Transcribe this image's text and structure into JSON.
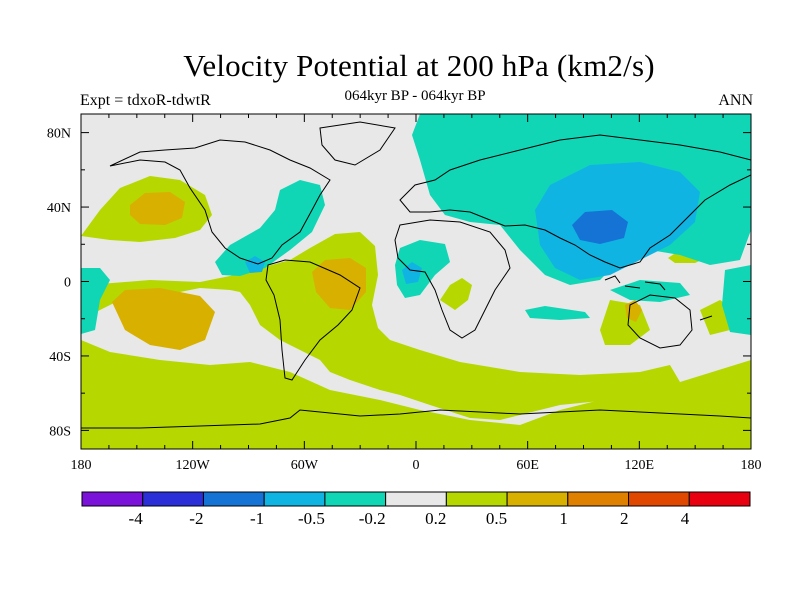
{
  "header": {
    "title": "Velocity Potential at 200 hPa (km2/s)",
    "subtitle": "064kyr BP - 064kyr BP",
    "left_label": "Expt = tdxoR-tdwtR",
    "right_label": "ANN"
  },
  "map": {
    "type": "filled-contour",
    "projection": "cylindrical-equidistant",
    "lon_range": [
      -180,
      180
    ],
    "lat_range": [
      -90,
      90
    ],
    "x_ticks": [
      {
        "lon": -180,
        "label": "180"
      },
      {
        "lon": -120,
        "label": "120W"
      },
      {
        "lon": -60,
        "label": "60W"
      },
      {
        "lon": 0,
        "label": "0"
      },
      {
        "lon": 60,
        "label": "60E"
      },
      {
        "lon": 120,
        "label": "120E"
      },
      {
        "lon": 180,
        "label": "180"
      }
    ],
    "y_ticks": [
      {
        "lat": 80,
        "label": "80N"
      },
      {
        "lat": 40,
        "label": "40N"
      },
      {
        "lat": 0,
        "label": "0"
      },
      {
        "lat": -40,
        "label": "40S"
      },
      {
        "lat": -80,
        "label": "80S"
      }
    ],
    "background_color": "#e8e8e8",
    "coastline_color": "#000000"
  },
  "colorbar": {
    "colors": [
      "#7b12d9",
      "#2b2fd8",
      "#1473d4",
      "#10b4e3",
      "#10d6b6",
      "#e8e8e8",
      "#b6d800",
      "#d8b000",
      "#e08000",
      "#e04800",
      "#e80010"
    ],
    "labels": [
      "-4",
      "-2",
      "-1",
      "-0.5",
      "-0.2",
      "0.2",
      "0.5",
      "1",
      "2",
      "4"
    ]
  },
  "chart_data": {
    "type": "heatmap",
    "title": "Velocity Potential at 200 hPa (km2/s)",
    "subtitle": "064kyr BP - 064kyr BP",
    "levels": [
      -4,
      -2,
      -1,
      -0.5,
      -0.2,
      0.2,
      0.5,
      1,
      2,
      4
    ],
    "regions": [
      {
        "name": "south-atlantic-pacific-positive",
        "level": 0.2,
        "lon": [
          -180,
          20
        ],
        "lat": [
          -75,
          -10
        ]
      },
      {
        "name": "antarctic-positive",
        "level": 0.2,
        "lon": [
          -180,
          180
        ],
        "lat": [
          -90,
          -60
        ]
      },
      {
        "name": "north-pacific-positive",
        "level": 0.2,
        "lon": [
          -180,
          -110
        ],
        "lat": [
          20,
          50
        ]
      },
      {
        "name": "north-pacific-core",
        "level": 0.5,
        "lon": [
          -152,
          -128
        ],
        "lat": [
          30,
          44
        ]
      },
      {
        "name": "south-pacific-core",
        "level": 0.5,
        "lon": [
          -165,
          -130
        ],
        "lat": [
          -32,
          -15
        ]
      },
      {
        "name": "south-america-core",
        "level": 0.5,
        "lon": [
          -50,
          -35
        ],
        "lat": [
          -10,
          5
        ]
      },
      {
        "name": "asia-negative",
        "level": -0.2,
        "lon": [
          10,
          180
        ],
        "lat": [
          0,
          90
        ]
      },
      {
        "name": "asia-core",
        "level": -0.5,
        "lon": [
          70,
          130
        ],
        "lat": [
          10,
          55
        ]
      },
      {
        "name": "asia-center",
        "level": -1,
        "lon": [
          90,
          115
        ],
        "lat": [
          20,
          35
        ]
      },
      {
        "name": "central-america-negative",
        "level": -0.2,
        "lon": [
          -100,
          -55
        ],
        "lat": [
          5,
          45
        ]
      },
      {
        "name": "west-africa-negative",
        "level": -0.2,
        "lon": [
          -5,
          20
        ],
        "lat": [
          -5,
          15
        ]
      },
      {
        "name": "east-pacific-negative",
        "level": -0.2,
        "lon": [
          -180,
          -170
        ],
        "lat": [
          -20,
          5
        ]
      },
      {
        "name": "south-indian-negative",
        "level": -0.2,
        "lon": [
          115,
          180
        ],
        "lat": [
          -30,
          -5
        ]
      }
    ]
  }
}
